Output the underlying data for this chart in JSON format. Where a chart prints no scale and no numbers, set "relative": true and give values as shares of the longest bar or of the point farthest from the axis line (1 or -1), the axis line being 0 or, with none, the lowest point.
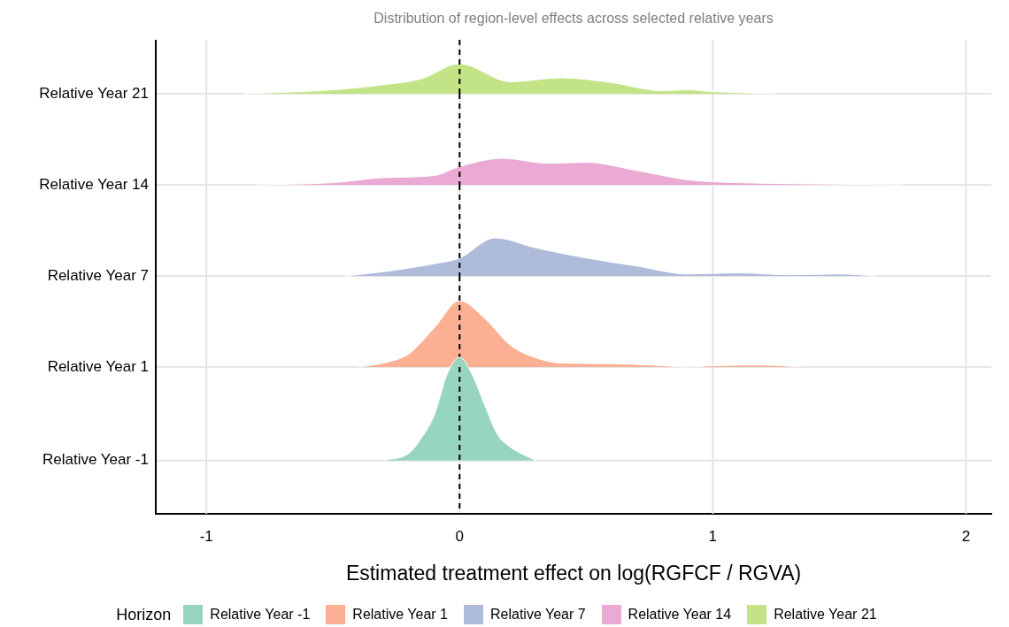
{
  "chart_data": [
    {
      "type": "area",
      "title": "Distribution of region-level effects across selected relative years",
      "relative": true,
      "grid": true,
      "tick_labels": false,
      "xlim": [
        -1.2,
        2.1
      ],
      "xticks": [
        -1,
        0,
        1,
        2
      ],
      "ref_lines": [
        {
          "axis": "x",
          "value": 0,
          "color": "#000000",
          "line_style": "dashed"
        }
      ],
      "series": [
        {
          "name": "Relative Year 21",
          "color": "#c2e487",
          "x": [
            -0.85,
            -0.5,
            -0.3,
            -0.15,
            0,
            0.2,
            0.4,
            0.6,
            0.8,
            0.9,
            1,
            1.25
          ],
          "values": [
            0,
            0.13,
            0.3,
            0.5,
            1,
            0.4,
            0.53,
            0.37,
            0.1,
            0.13,
            0.07,
            0
          ]
        }
      ]
    },
    {
      "type": "area",
      "relative": true,
      "grid": true,
      "tick_labels": false,
      "xlim": [
        -1.2,
        2.1
      ],
      "xticks": [
        -1,
        0,
        1,
        2
      ],
      "ref_lines": [
        {
          "axis": "x",
          "value": 0,
          "color": "#000000",
          "line_style": "dashed"
        }
      ],
      "series": [
        {
          "name": "Relative Year 14",
          "color": "#ebaad3",
          "x": [
            -0.8,
            -0.5,
            -0.3,
            -0.1,
            0,
            0.17,
            0.35,
            0.5,
            0.7,
            0.9,
            1.1,
            1.35,
            1.75
          ],
          "values": [
            0,
            0.08,
            0.27,
            0.35,
            0.69,
            1,
            0.81,
            0.85,
            0.54,
            0.19,
            0.08,
            0.04,
            0
          ]
        }
      ]
    },
    {
      "type": "area",
      "relative": true,
      "grid": true,
      "tick_labels": false,
      "xlim": [
        -1.2,
        2.1
      ],
      "xticks": [
        -1,
        0,
        1,
        2
      ],
      "ref_lines": [
        {
          "axis": "x",
          "value": 0,
          "color": "#000000",
          "line_style": "dashed"
        }
      ],
      "series": [
        {
          "name": "Relative Year 7",
          "color": "#aebbd9",
          "x": [
            -0.45,
            -0.3,
            -0.1,
            0,
            0.14,
            0.3,
            0.5,
            0.7,
            0.9,
            1.1,
            1.3,
            1.5,
            1.65
          ],
          "values": [
            0,
            0.11,
            0.32,
            0.47,
            1,
            0.74,
            0.47,
            0.26,
            0.05,
            0.08,
            0.03,
            0.05,
            0
          ]
        }
      ]
    },
    {
      "type": "area",
      "relative": true,
      "grid": true,
      "tick_labels": false,
      "xlim": [
        -1.2,
        2.1
      ],
      "xticks": [
        -1,
        0,
        1,
        2
      ],
      "ref_lines": [
        {
          "axis": "x",
          "value": 0,
          "color": "#000000",
          "line_style": "dashed"
        }
      ],
      "series": [
        {
          "name": "Relative Year 1",
          "color": "#fcb093",
          "x": [
            -0.4,
            -0.3,
            -0.2,
            -0.1,
            0,
            0.1,
            0.2,
            0.3,
            0.4,
            0.6,
            0.8,
            0.9,
            1,
            1.2,
            1.35
          ],
          "values": [
            0,
            0.06,
            0.2,
            0.59,
            1,
            0.73,
            0.33,
            0.14,
            0.06,
            0.05,
            0.02,
            0,
            0.02,
            0.03,
            0
          ]
        }
      ]
    },
    {
      "type": "area",
      "relative": true,
      "grid": true,
      "tick_labels": "x",
      "xlim": [
        -1.2,
        2.1
      ],
      "xticks": [
        -1,
        0,
        1,
        2
      ],
      "xlabel": "Estimated treatment effect on log(RGFCF / RGVA)",
      "legend": "bottom",
      "legend_title": "Horizon",
      "ref_lines": [
        {
          "axis": "x",
          "value": 0,
          "color": "#000000",
          "line_style": "dashed"
        }
      ],
      "series": [
        {
          "name": "Relative Year -1",
          "color": "#97d5c0",
          "x": [
            -0.3,
            -0.2,
            -0.15,
            -0.1,
            -0.05,
            0,
            0.05,
            0.1,
            0.15,
            0.2,
            0.3
          ],
          "values": [
            0,
            0.07,
            0.22,
            0.44,
            0.83,
            1,
            0.83,
            0.53,
            0.25,
            0.13,
            0
          ]
        }
      ]
    }
  ]
}
